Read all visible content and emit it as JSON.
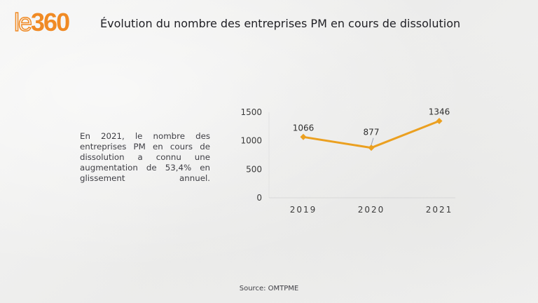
{
  "logo": {
    "prefix": "le",
    "suffix": "360"
  },
  "title": "Évolution du nombre des entreprises PM en cours de dissolution",
  "description": "En 2021, le nombre des entreprises PM en cours de dissolution a connu une augmentation de 53,4% en glissement annuel.",
  "source": "Source: OMTPME",
  "colors": {
    "brand": "#f08a24",
    "line": "#eba020"
  },
  "chart_data": {
    "type": "line",
    "title": "",
    "xlabel": "",
    "ylabel": "",
    "categories": [
      "2019",
      "2020",
      "2021"
    ],
    "series": [
      {
        "name": "Entreprises PM en cours de dissolution",
        "values": [
          1066,
          877,
          1346
        ]
      }
    ],
    "data_labels": [
      "1066",
      "877",
      "1346"
    ],
    "ylim": [
      0,
      1500
    ],
    "yticks": [
      0,
      500,
      1000,
      1500
    ],
    "grid": false,
    "legend": "none",
    "marker": "diamond"
  }
}
